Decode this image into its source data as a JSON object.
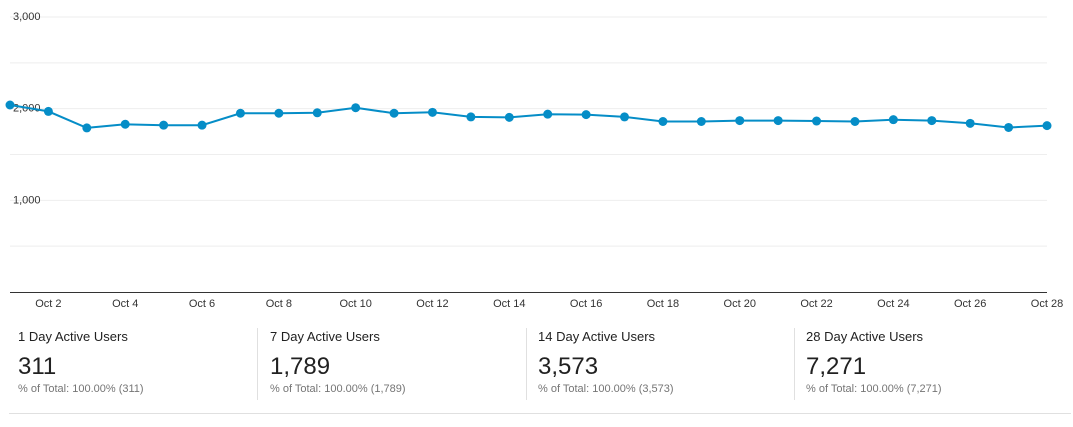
{
  "chart_data": {
    "type": "line",
    "x": [
      "Oct 1",
      "Oct 2",
      "Oct 3",
      "Oct 4",
      "Oct 5",
      "Oct 6",
      "Oct 7",
      "Oct 8",
      "Oct 9",
      "Oct 10",
      "Oct 11",
      "Oct 12",
      "Oct 13",
      "Oct 14",
      "Oct 15",
      "Oct 16",
      "Oct 17",
      "Oct 18",
      "Oct 19",
      "Oct 20",
      "Oct 21",
      "Oct 22",
      "Oct 23",
      "Oct 24",
      "Oct 25",
      "Oct 26",
      "Oct 27",
      "Oct 28"
    ],
    "x_tick_labels": [
      "Oct 2",
      "Oct 4",
      "Oct 6",
      "Oct 8",
      "Oct 10",
      "Oct 12",
      "Oct 14",
      "Oct 16",
      "Oct 18",
      "Oct 20",
      "Oct 22",
      "Oct 24",
      "Oct 26",
      "Oct 28"
    ],
    "y_tick_labels": [
      "3,000",
      "2,000",
      "1,000"
    ],
    "y_ticks": [
      3000,
      2000,
      1000
    ],
    "series": [
      {
        "values": [
          2040,
          1970,
          1790,
          1830,
          1820,
          1820,
          1950,
          1950,
          1955,
          2010,
          1950,
          1960,
          1910,
          1905,
          1940,
          1935,
          1910,
          1860,
          1860,
          1870,
          1870,
          1865,
          1860,
          1880,
          1870,
          1840,
          1795,
          1815
        ]
      }
    ],
    "ylim": [
      0,
      3000
    ],
    "grid": true,
    "title": "",
    "xlabel": "",
    "ylabel": "",
    "colors": {
      "line": "#058dc7",
      "grid": "#eeeeee",
      "axis": "#333333",
      "tick_text": "#333333"
    }
  },
  "metrics": [
    {
      "label": "1 Day Active Users",
      "value": "311",
      "sub": "% of Total: 100.00% (311)"
    },
    {
      "label": "7 Day Active Users",
      "value": "1,789",
      "sub": "% of Total: 100.00% (1,789)"
    },
    {
      "label": "14 Day Active Users",
      "value": "3,573",
      "sub": "% of Total: 100.00% (3,573)"
    },
    {
      "label": "28 Day Active Users",
      "value": "7,271",
      "sub": "% of Total: 100.00% (7,271)"
    }
  ]
}
